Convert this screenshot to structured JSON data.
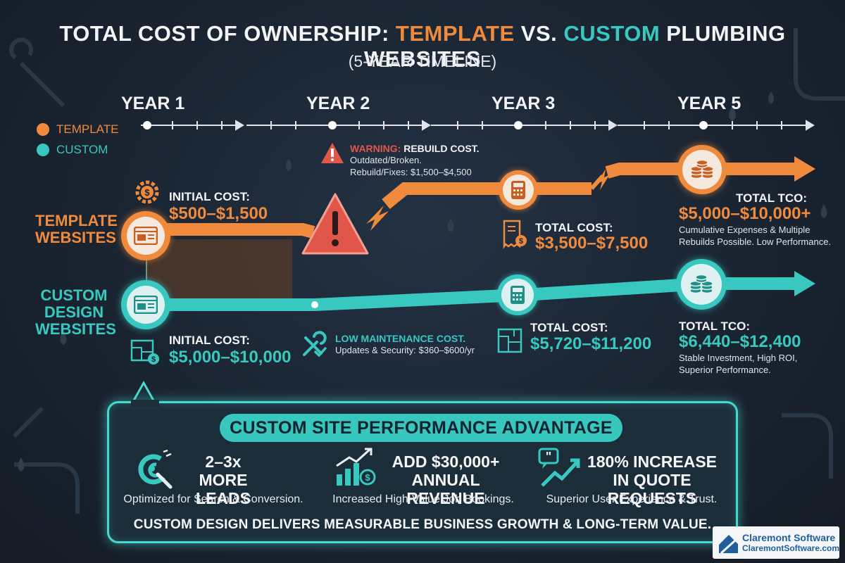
{
  "title": {
    "part1": "TOTAL COST OF OWNERSHIP: ",
    "part2": "TEMPLATE",
    "part3": " VS. ",
    "part4": "CUSTOM",
    "part5": " PLUMBING WEBSITES"
  },
  "subtitle": "(5-YEAR TIMELINE)",
  "years": [
    "YEAR 1",
    "YEAR 2",
    "YEAR 3",
    "YEAR 5"
  ],
  "legend": {
    "template": "TEMPLATE",
    "custom": "CUSTOM"
  },
  "colors": {
    "template": "#f08a3c",
    "custom": "#38c8c0",
    "warning": "#e0564a",
    "background": "#1a2230"
  },
  "template": {
    "label_line1": "TEMPLATE",
    "label_line2": "WEBSITES",
    "initial_label": "INITIAL COST:",
    "initial_value": "$500–$1,500",
    "warning_label": "WARNING:",
    "warning_title": "REBUILD COST.",
    "warning_line1": "Outdated/Broken.",
    "warning_line2": "Rebuild/Fixes: $1,500–$4,500",
    "year3_label": "TOTAL COST:",
    "year3_value": "$3,500–$7,500",
    "tco_label": "TOTAL TCO:",
    "tco_value": "$5,000–$10,000+",
    "tco_note1": "Cumulative Expenses & Multiple",
    "tco_note2": "Rebuilds Possible. Low Performance."
  },
  "custom": {
    "label_line1": "CUSTOM",
    "label_line2": "DESIGN",
    "label_line3": "WEBSITES",
    "initial_label": "INITIAL COST:",
    "initial_value": "$5,000–$10,000",
    "maint_title": "LOW MAINTENANCE COST.",
    "maint_line": "Updates & Security: $360–$600/yr",
    "year3_label": "TOTAL COST:",
    "year3_value": "$5,720–$11,200",
    "tco_label": "TOTAL TCO:",
    "tco_value": "$6,440–$12,400",
    "tco_note1": "Stable Investment, High ROI,",
    "tco_note2": "Superior Performance."
  },
  "advantage": {
    "title": "CUSTOM SITE PERFORMANCE ADVANTAGE",
    "items": [
      {
        "head1": "2–3x",
        "head2": "MORE LEADS",
        "sub": "Optimized for Search & Conversion.",
        "icon": "magnet-icon"
      },
      {
        "head1": "ADD $30,000+",
        "head2": "ANNUAL REVENUE",
        "sub": "Increased High-Value Job Bookings.",
        "icon": "growth-chart-icon"
      },
      {
        "head1": "180% INCREASE",
        "head2": "IN QUOTE REQUESTS",
        "sub": "Superior User Experience & Trust.",
        "icon": "chat-trend-icon"
      }
    ],
    "footer": "CUSTOM DESIGN DELIVERS MEASURABLE BUSINESS GROWTH & LONG-TERM VALUE."
  },
  "brand": {
    "name": "Claremont Software",
    "url": "ClaremontSoftware.com"
  }
}
